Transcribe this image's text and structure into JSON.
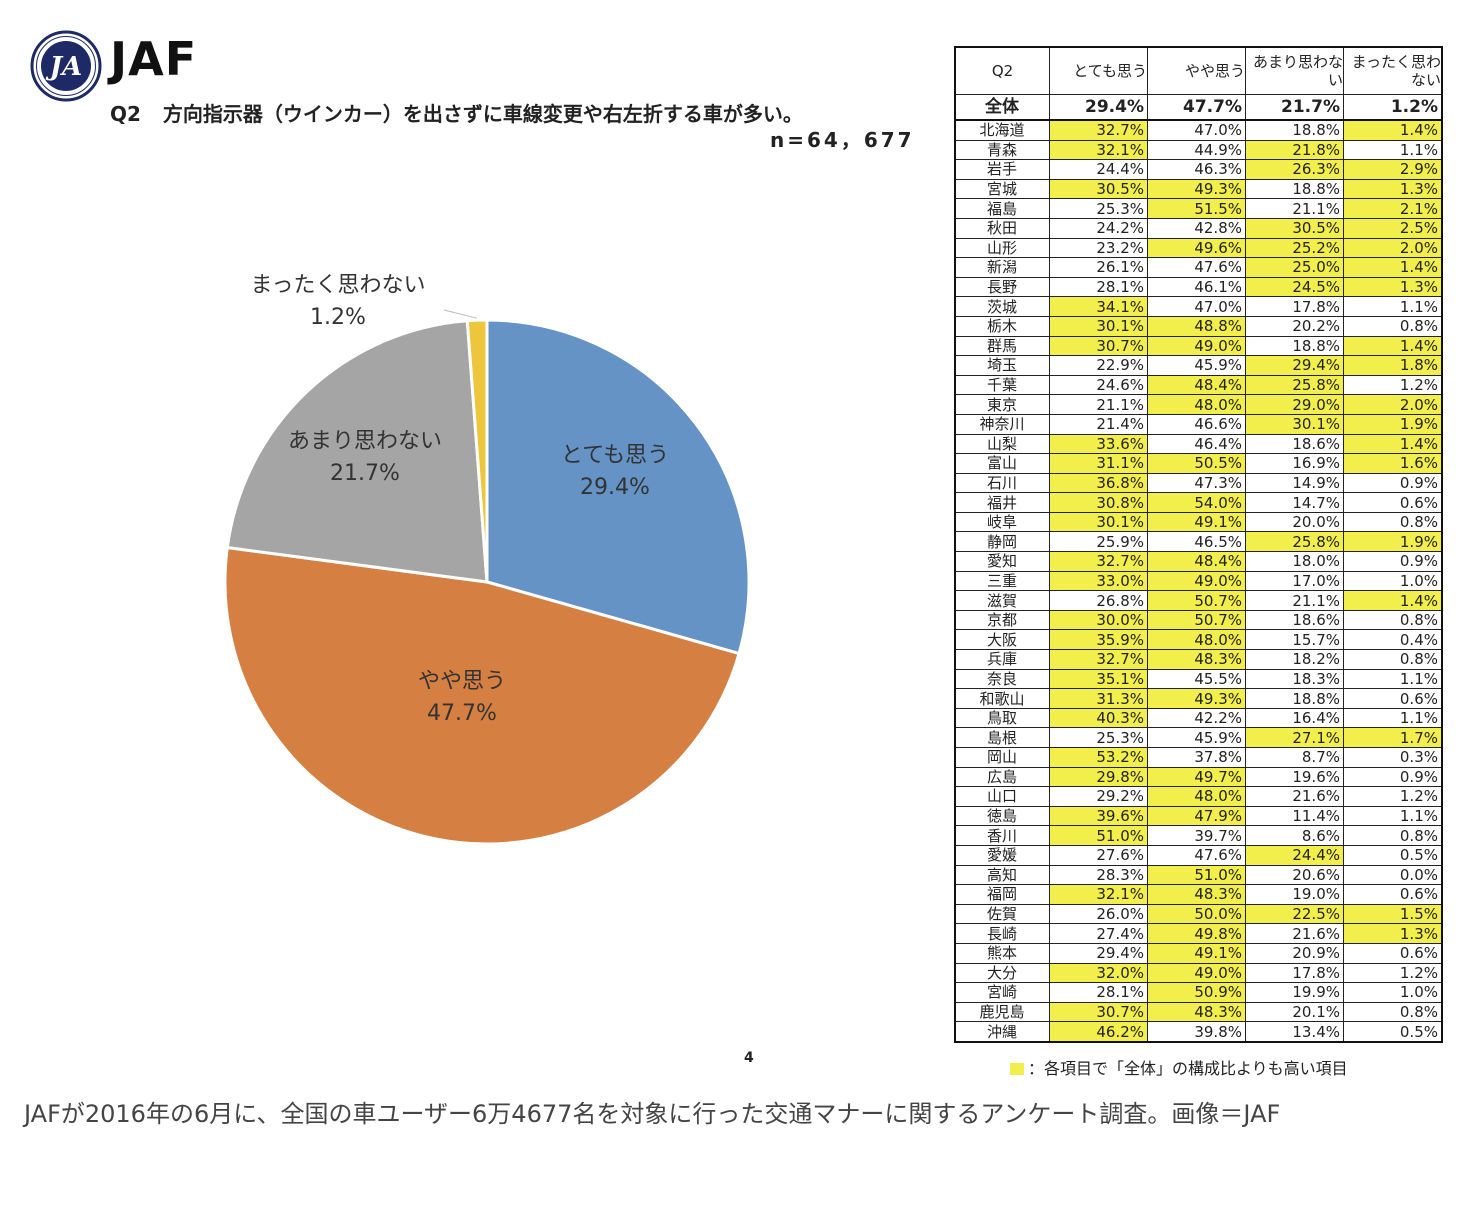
{
  "header": {
    "brand": "JAF",
    "question_no": "Q2",
    "question": "方向指示器（ウインカー）を出さずに車線変更や右左折する車が多い。",
    "sample": "n=64，677",
    "logo_icon": "jaf-emblem-icon"
  },
  "chart_data": {
    "type": "pie",
    "series": [
      {
        "name": "とても思う",
        "value": 29.4,
        "label": "29.4%",
        "color": "#6593c6"
      },
      {
        "name": "やや思う",
        "value": 47.7,
        "label": "47.7%",
        "color": "#d57f42"
      },
      {
        "name": "あまり思わない",
        "value": 21.7,
        "label": "21.7%",
        "color": "#a5a5a5"
      },
      {
        "name": "まったく思わない",
        "value": 1.2,
        "label": "1.2%",
        "color": "#eec63d"
      }
    ]
  },
  "table": {
    "header": [
      "Q2",
      "とても思う",
      "やや思う",
      "あまり思わない",
      "まったく思わない"
    ],
    "total": {
      "label": "全体",
      "values": [
        "29.4%",
        "47.7%",
        "21.7%",
        "1.2%"
      ]
    },
    "rows": [
      {
        "pref": "北海道",
        "v": [
          "32.7%",
          "47.0%",
          "18.8%",
          "1.4%"
        ],
        "hl": [
          1,
          0,
          0,
          1
        ]
      },
      {
        "pref": "青森",
        "v": [
          "32.1%",
          "44.9%",
          "21.8%",
          "1.1%"
        ],
        "hl": [
          1,
          0,
          1,
          0
        ]
      },
      {
        "pref": "岩手",
        "v": [
          "24.4%",
          "46.3%",
          "26.3%",
          "2.9%"
        ],
        "hl": [
          0,
          0,
          1,
          1
        ]
      },
      {
        "pref": "宮城",
        "v": [
          "30.5%",
          "49.3%",
          "18.8%",
          "1.3%"
        ],
        "hl": [
          1,
          1,
          0,
          1
        ]
      },
      {
        "pref": "福島",
        "v": [
          "25.3%",
          "51.5%",
          "21.1%",
          "2.1%"
        ],
        "hl": [
          0,
          1,
          0,
          1
        ]
      },
      {
        "pref": "秋田",
        "v": [
          "24.2%",
          "42.8%",
          "30.5%",
          "2.5%"
        ],
        "hl": [
          0,
          0,
          1,
          1
        ]
      },
      {
        "pref": "山形",
        "v": [
          "23.2%",
          "49.6%",
          "25.2%",
          "2.0%"
        ],
        "hl": [
          0,
          1,
          1,
          1
        ]
      },
      {
        "pref": "新潟",
        "v": [
          "26.1%",
          "47.6%",
          "25.0%",
          "1.4%"
        ],
        "hl": [
          0,
          0,
          1,
          1
        ]
      },
      {
        "pref": "長野",
        "v": [
          "28.1%",
          "46.1%",
          "24.5%",
          "1.3%"
        ],
        "hl": [
          0,
          0,
          1,
          1
        ]
      },
      {
        "pref": "茨城",
        "v": [
          "34.1%",
          "47.0%",
          "17.8%",
          "1.1%"
        ],
        "hl": [
          1,
          0,
          0,
          0
        ]
      },
      {
        "pref": "栃木",
        "v": [
          "30.1%",
          "48.8%",
          "20.2%",
          "0.8%"
        ],
        "hl": [
          1,
          1,
          0,
          0
        ]
      },
      {
        "pref": "群馬",
        "v": [
          "30.7%",
          "49.0%",
          "18.8%",
          "1.4%"
        ],
        "hl": [
          1,
          1,
          0,
          1
        ]
      },
      {
        "pref": "埼玉",
        "v": [
          "22.9%",
          "45.9%",
          "29.4%",
          "1.8%"
        ],
        "hl": [
          0,
          0,
          1,
          1
        ]
      },
      {
        "pref": "千葉",
        "v": [
          "24.6%",
          "48.4%",
          "25.8%",
          "1.2%"
        ],
        "hl": [
          0,
          1,
          1,
          0
        ]
      },
      {
        "pref": "東京",
        "v": [
          "21.1%",
          "48.0%",
          "29.0%",
          "2.0%"
        ],
        "hl": [
          0,
          1,
          1,
          1
        ]
      },
      {
        "pref": "神奈川",
        "v": [
          "21.4%",
          "46.6%",
          "30.1%",
          "1.9%"
        ],
        "hl": [
          0,
          0,
          1,
          1
        ]
      },
      {
        "pref": "山梨",
        "v": [
          "33.6%",
          "46.4%",
          "18.6%",
          "1.4%"
        ],
        "hl": [
          1,
          0,
          0,
          1
        ]
      },
      {
        "pref": "富山",
        "v": [
          "31.1%",
          "50.5%",
          "16.9%",
          "1.6%"
        ],
        "hl": [
          1,
          1,
          0,
          1
        ]
      },
      {
        "pref": "石川",
        "v": [
          "36.8%",
          "47.3%",
          "14.9%",
          "0.9%"
        ],
        "hl": [
          1,
          0,
          0,
          0
        ]
      },
      {
        "pref": "福井",
        "v": [
          "30.8%",
          "54.0%",
          "14.7%",
          "0.6%"
        ],
        "hl": [
          1,
          1,
          0,
          0
        ]
      },
      {
        "pref": "岐阜",
        "v": [
          "30.1%",
          "49.1%",
          "20.0%",
          "0.8%"
        ],
        "hl": [
          1,
          1,
          0,
          0
        ]
      },
      {
        "pref": "静岡",
        "v": [
          "25.9%",
          "46.5%",
          "25.8%",
          "1.9%"
        ],
        "hl": [
          0,
          0,
          1,
          1
        ]
      },
      {
        "pref": "愛知",
        "v": [
          "32.7%",
          "48.4%",
          "18.0%",
          "0.9%"
        ],
        "hl": [
          1,
          1,
          0,
          0
        ]
      },
      {
        "pref": "三重",
        "v": [
          "33.0%",
          "49.0%",
          "17.0%",
          "1.0%"
        ],
        "hl": [
          1,
          1,
          0,
          0
        ]
      },
      {
        "pref": "滋賀",
        "v": [
          "26.8%",
          "50.7%",
          "21.1%",
          "1.4%"
        ],
        "hl": [
          0,
          1,
          0,
          1
        ]
      },
      {
        "pref": "京都",
        "v": [
          "30.0%",
          "50.7%",
          "18.6%",
          "0.8%"
        ],
        "hl": [
          1,
          1,
          0,
          0
        ]
      },
      {
        "pref": "大阪",
        "v": [
          "35.9%",
          "48.0%",
          "15.7%",
          "0.4%"
        ],
        "hl": [
          1,
          1,
          0,
          0
        ]
      },
      {
        "pref": "兵庫",
        "v": [
          "32.7%",
          "48.3%",
          "18.2%",
          "0.8%"
        ],
        "hl": [
          1,
          1,
          0,
          0
        ]
      },
      {
        "pref": "奈良",
        "v": [
          "35.1%",
          "45.5%",
          "18.3%",
          "1.1%"
        ],
        "hl": [
          1,
          0,
          0,
          0
        ]
      },
      {
        "pref": "和歌山",
        "v": [
          "31.3%",
          "49.3%",
          "18.8%",
          "0.6%"
        ],
        "hl": [
          1,
          1,
          0,
          0
        ]
      },
      {
        "pref": "鳥取",
        "v": [
          "40.3%",
          "42.2%",
          "16.4%",
          "1.1%"
        ],
        "hl": [
          1,
          0,
          0,
          0
        ]
      },
      {
        "pref": "島根",
        "v": [
          "25.3%",
          "45.9%",
          "27.1%",
          "1.7%"
        ],
        "hl": [
          0,
          0,
          1,
          1
        ]
      },
      {
        "pref": "岡山",
        "v": [
          "53.2%",
          "37.8%",
          "8.7%",
          "0.3%"
        ],
        "hl": [
          1,
          0,
          0,
          0
        ]
      },
      {
        "pref": "広島",
        "v": [
          "29.8%",
          "49.7%",
          "19.6%",
          "0.9%"
        ],
        "hl": [
          1,
          1,
          0,
          0
        ]
      },
      {
        "pref": "山口",
        "v": [
          "29.2%",
          "48.0%",
          "21.6%",
          "1.2%"
        ],
        "hl": [
          0,
          1,
          0,
          0
        ]
      },
      {
        "pref": "徳島",
        "v": [
          "39.6%",
          "47.9%",
          "11.4%",
          "1.1%"
        ],
        "hl": [
          1,
          1,
          0,
          0
        ]
      },
      {
        "pref": "香川",
        "v": [
          "51.0%",
          "39.7%",
          "8.6%",
          "0.8%"
        ],
        "hl": [
          1,
          0,
          0,
          0
        ]
      },
      {
        "pref": "愛媛",
        "v": [
          "27.6%",
          "47.6%",
          "24.4%",
          "0.5%"
        ],
        "hl": [
          0,
          0,
          1,
          0
        ]
      },
      {
        "pref": "高知",
        "v": [
          "28.3%",
          "51.0%",
          "20.6%",
          "0.0%"
        ],
        "hl": [
          0,
          1,
          0,
          0
        ]
      },
      {
        "pref": "福岡",
        "v": [
          "32.1%",
          "48.3%",
          "19.0%",
          "0.6%"
        ],
        "hl": [
          1,
          1,
          0,
          0
        ]
      },
      {
        "pref": "佐賀",
        "v": [
          "26.0%",
          "50.0%",
          "22.5%",
          "1.5%"
        ],
        "hl": [
          0,
          1,
          1,
          1
        ]
      },
      {
        "pref": "長崎",
        "v": [
          "27.4%",
          "49.8%",
          "21.6%",
          "1.3%"
        ],
        "hl": [
          0,
          1,
          0,
          1
        ]
      },
      {
        "pref": "熊本",
        "v": [
          "29.4%",
          "49.1%",
          "20.9%",
          "0.6%"
        ],
        "hl": [
          0,
          1,
          0,
          0
        ]
      },
      {
        "pref": "大分",
        "v": [
          "32.0%",
          "49.0%",
          "17.8%",
          "1.2%"
        ],
        "hl": [
          1,
          1,
          0,
          0
        ]
      },
      {
        "pref": "宮崎",
        "v": [
          "28.1%",
          "50.9%",
          "19.9%",
          "1.0%"
        ],
        "hl": [
          0,
          1,
          0,
          0
        ]
      },
      {
        "pref": "鹿児島",
        "v": [
          "30.7%",
          "48.3%",
          "20.1%",
          "0.8%"
        ],
        "hl": [
          1,
          1,
          0,
          0
        ]
      },
      {
        "pref": "沖縄",
        "v": [
          "46.2%",
          "39.8%",
          "13.4%",
          "0.5%"
        ],
        "hl": [
          1,
          0,
          0,
          0
        ]
      }
    ],
    "highlight_color": "#f2ee4b"
  },
  "legend_note": "：各項目で「全体」の構成比よりも高い項目",
  "page_number": "4",
  "caption": "JAFが2016年の6月に、全国の車ユーザー6万4677名を対象に行った交通マナーに関するアンケート調査。画像＝JAF"
}
